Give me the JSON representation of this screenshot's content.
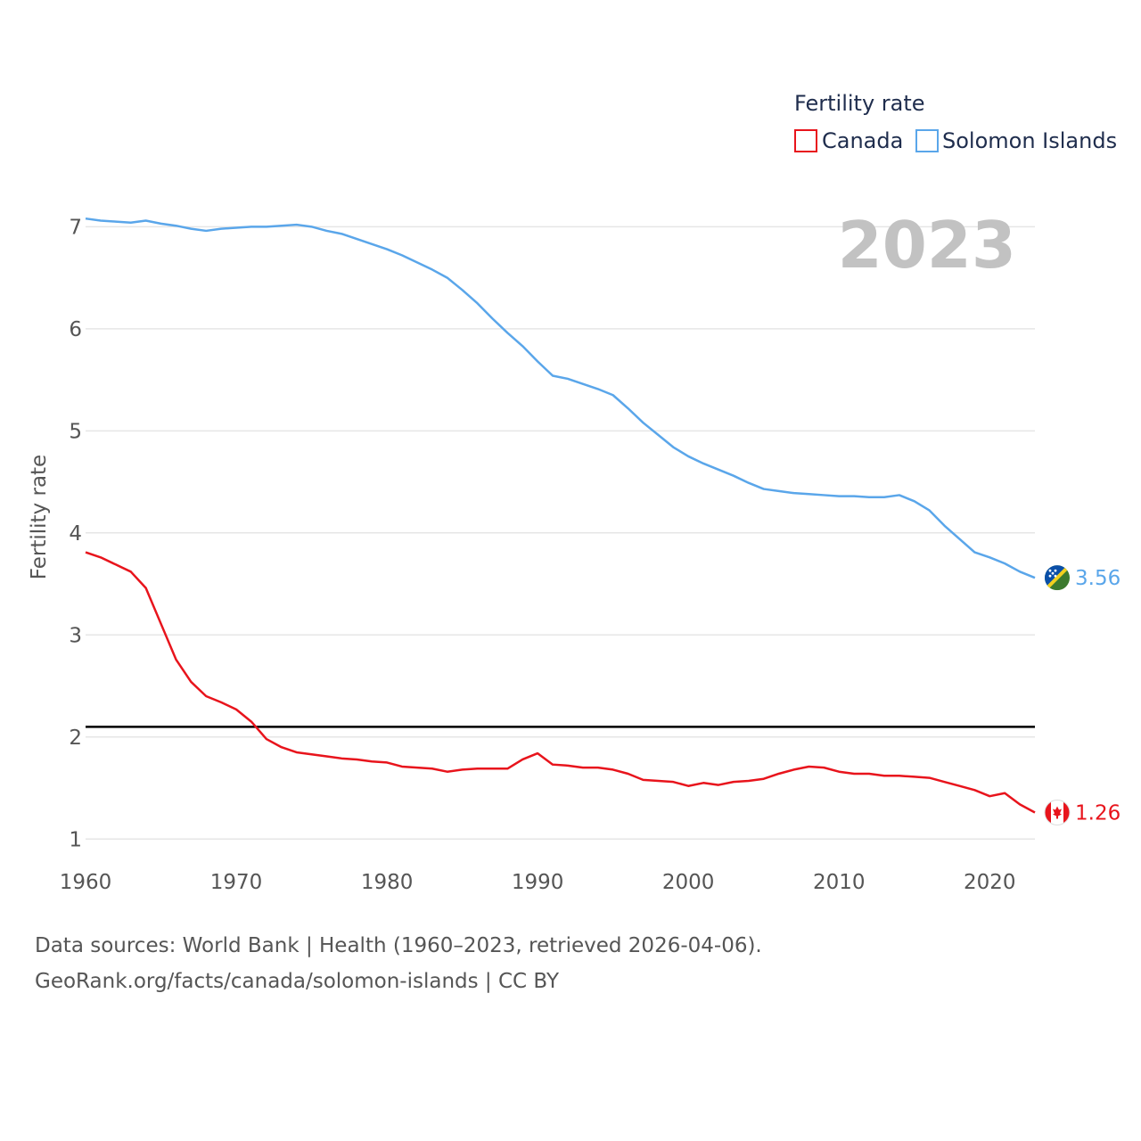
{
  "chart_data": {
    "type": "line",
    "title": "",
    "xlabel": "",
    "ylabel": "Fertility rate",
    "xlim": [
      1960,
      2023
    ],
    "ylim": [
      0.88,
      7.3
    ],
    "xticks": [
      1960,
      1970,
      1980,
      1990,
      2000,
      2010,
      2020
    ],
    "yticks": [
      1,
      2,
      3,
      4,
      5,
      6,
      7
    ],
    "grid": true,
    "legend_title": "Fertility rate",
    "legend_position": "top-right",
    "year_label": "2023",
    "reference_line": {
      "y": 2.1,
      "color": "#000000"
    },
    "x": [
      1960,
      1961,
      1962,
      1963,
      1964,
      1965,
      1966,
      1967,
      1968,
      1969,
      1970,
      1971,
      1972,
      1973,
      1974,
      1975,
      1976,
      1977,
      1978,
      1979,
      1980,
      1981,
      1982,
      1983,
      1984,
      1985,
      1986,
      1987,
      1988,
      1989,
      1990,
      1991,
      1992,
      1993,
      1994,
      1995,
      1996,
      1997,
      1998,
      1999,
      2000,
      2001,
      2002,
      2003,
      2004,
      2005,
      2006,
      2007,
      2008,
      2009,
      2010,
      2011,
      2012,
      2013,
      2014,
      2015,
      2016,
      2017,
      2018,
      2019,
      2020,
      2021,
      2022,
      2023
    ],
    "series": [
      {
        "name": "Canada",
        "color": "#e8141c",
        "end_label": "1.26",
        "flag": "canada-flag",
        "values": [
          3.81,
          3.76,
          3.69,
          3.62,
          3.46,
          3.11,
          2.76,
          2.54,
          2.4,
          2.34,
          2.27,
          2.15,
          1.98,
          1.9,
          1.85,
          1.83,
          1.81,
          1.79,
          1.78,
          1.76,
          1.75,
          1.71,
          1.7,
          1.69,
          1.66,
          1.68,
          1.69,
          1.69,
          1.69,
          1.78,
          1.84,
          1.73,
          1.72,
          1.7,
          1.7,
          1.68,
          1.64,
          1.58,
          1.57,
          1.56,
          1.52,
          1.55,
          1.53,
          1.56,
          1.57,
          1.59,
          1.64,
          1.68,
          1.71,
          1.7,
          1.66,
          1.64,
          1.64,
          1.62,
          1.62,
          1.61,
          1.6,
          1.56,
          1.52,
          1.48,
          1.42,
          1.45,
          1.34,
          1.26
        ]
      },
      {
        "name": "Solomon Islands",
        "color": "#5aa6ea",
        "end_label": "3.56",
        "flag": "solomon-islands-flag",
        "values": [
          7.08,
          7.06,
          7.05,
          7.04,
          7.06,
          7.03,
          7.01,
          6.98,
          6.96,
          6.98,
          6.99,
          7.0,
          7.0,
          7.01,
          7.02,
          7.0,
          6.96,
          6.93,
          6.88,
          6.83,
          6.78,
          6.72,
          6.65,
          6.58,
          6.5,
          6.38,
          6.25,
          6.1,
          5.96,
          5.83,
          5.68,
          5.54,
          5.51,
          5.46,
          5.41,
          5.35,
          5.22,
          5.08,
          4.96,
          4.84,
          4.75,
          4.68,
          4.62,
          4.56,
          4.49,
          4.43,
          4.41,
          4.39,
          4.38,
          4.37,
          4.36,
          4.36,
          4.35,
          4.35,
          4.37,
          4.31,
          4.22,
          4.07,
          3.94,
          3.81,
          3.76,
          3.7,
          3.62,
          3.56
        ]
      }
    ]
  },
  "footer": {
    "source_line_1": "Data sources: World Bank | Health (1960–2023, retrieved 2026-04-06).",
    "source_line_2": "GeoRank.org/facts/canada/solomon-islands | CC BY"
  }
}
